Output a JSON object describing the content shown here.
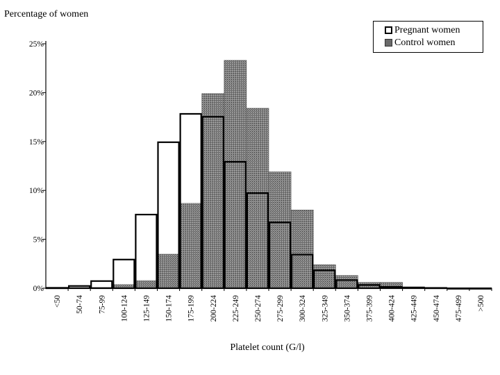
{
  "chart_data": {
    "type": "bar",
    "ylabel": "Percentage of women",
    "xlabel": "Platelet count (G/l)",
    "categories": [
      "<50",
      "50-74",
      "75-99",
      "100-124",
      "125-149",
      "150-174",
      "175-199",
      "200-224",
      "225-249",
      "250-274",
      "275-299",
      "300-324",
      "325-349",
      "350-374",
      "375-399",
      "400-424",
      "425-449",
      "450-474",
      "475-499",
      ">500"
    ],
    "yticks": [
      "0%",
      "5%",
      "10%",
      "15%",
      "20%",
      "25%"
    ],
    "ylim": [
      0,
      25
    ],
    "series": [
      {
        "name": "Control women",
        "values": [
          0.1,
          0.1,
          0.1,
          0.4,
          0.8,
          3.5,
          8.7,
          19.9,
          23.3,
          18.4,
          11.9,
          8.0,
          2.4,
          1.3,
          0.6,
          0.6,
          0.05,
          0.05,
          0.05,
          0.05
        ],
        "color": "#6a6a6a"
      },
      {
        "name": "Pregnant women",
        "values": [
          0.1,
          0.3,
          0.8,
          3.0,
          7.6,
          15.0,
          17.9,
          17.6,
          13.0,
          9.8,
          6.8,
          3.5,
          1.9,
          0.9,
          0.4,
          0.2,
          0.15,
          0.1,
          0.05,
          0.05
        ],
        "color": "#ffffff"
      }
    ],
    "legend": "top-right",
    "grid": false
  }
}
